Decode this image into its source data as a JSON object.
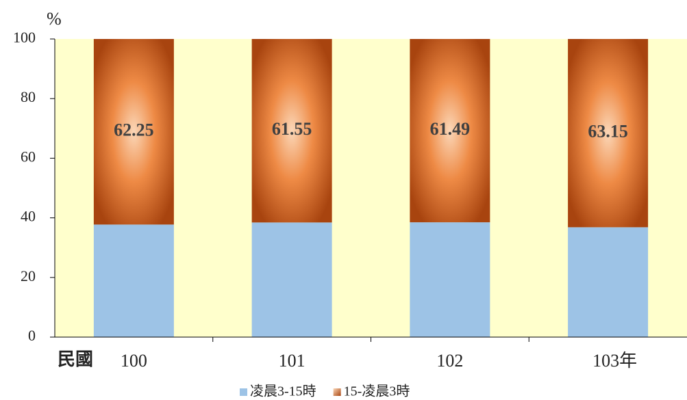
{
  "chart_data": {
    "type": "stacked_bar",
    "y_unit": "%",
    "x_prefix": "民國",
    "categories": [
      "100",
      "101",
      "102",
      "103年"
    ],
    "series": [
      {
        "name": "凌晨3-15時",
        "color": "#9dc3e6",
        "values": [
          37.75,
          38.45,
          38.51,
          36.85
        ]
      },
      {
        "name": "15-凌晨3時",
        "color": "#c55a11",
        "values": [
          62.25,
          61.55,
          61.49,
          63.15
        ],
        "show_labels": true
      }
    ],
    "ylim": [
      0,
      100
    ],
    "yticks": [
      0,
      20,
      40,
      60,
      80,
      100
    ],
    "background": "#ffffcc",
    "legend": "bottom"
  }
}
